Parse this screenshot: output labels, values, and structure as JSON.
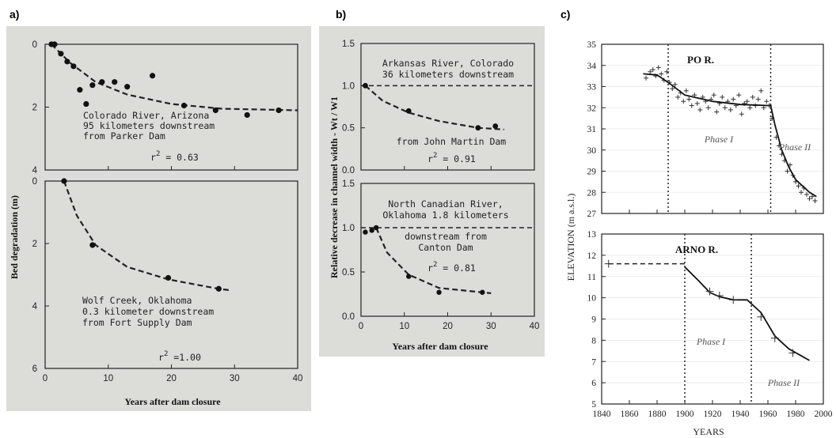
{
  "panels": {
    "a": {
      "label": "a)",
      "ylabel": "Bed degradation (m)",
      "xlabel": "Years after dam closure",
      "xticks": [
        "0",
        "10",
        "20",
        "30",
        "40"
      ]
    },
    "b": {
      "label": "b)",
      "ylabel": "Relative decrease in channel width - Wt / W1",
      "xlabel": "Years after dam closure",
      "xticks": [
        "0",
        "10",
        "20",
        "30",
        "40"
      ]
    },
    "c": {
      "label": "c)",
      "ylabel": "ELEVATION (m a.s.l.)",
      "xlabel": "YEARS",
      "xticks": [
        "1840",
        "1860",
        "1880",
        "1900",
        "1920",
        "1940",
        "1960",
        "1980",
        "2000"
      ]
    }
  },
  "chart_data": [
    {
      "type": "scatter",
      "id": "a-top",
      "annotation": [
        "Colorado River, Arizona",
        "95 kilometers downstream",
        "from Parker Dam"
      ],
      "r2_label": "r",
      "r2_sup": "2",
      "r2_value": "= 0.63",
      "ylim": [
        0,
        4
      ],
      "yticks": [
        "0",
        "2",
        "4"
      ],
      "xlim": [
        0,
        40
      ],
      "points": [
        [
          1,
          0
        ],
        [
          1.5,
          0
        ],
        [
          2.5,
          0.3
        ],
        [
          3.5,
          0.55
        ],
        [
          4.5,
          0.7
        ],
        [
          5.5,
          1.45
        ],
        [
          6.5,
          1.9
        ],
        [
          7.5,
          1.3
        ],
        [
          9,
          1.2
        ],
        [
          11,
          1.2
        ],
        [
          13,
          1.35
        ],
        [
          17,
          1.0
        ],
        [
          22,
          1.95
        ],
        [
          27,
          2.1
        ],
        [
          32,
          2.25
        ],
        [
          37,
          2.1
        ]
      ],
      "fit": [
        [
          1,
          0
        ],
        [
          4,
          0.6
        ],
        [
          8,
          1.2
        ],
        [
          13,
          1.6
        ],
        [
          20,
          1.9
        ],
        [
          28,
          2.05
        ],
        [
          40,
          2.1
        ]
      ]
    },
    {
      "type": "scatter",
      "id": "a-bottom",
      "annotation": [
        "Wolf Creek, Oklahoma",
        "0.3 kilometer  downstream",
        "from Fort Supply Dam"
      ],
      "r2_label": "r",
      "r2_sup": "2",
      "r2_value": "=1.00",
      "ylim": [
        0,
        6
      ],
      "yticks": [
        "0",
        "2",
        "4",
        "6"
      ],
      "xlim": [
        0,
        40
      ],
      "points": [
        [
          3,
          0
        ],
        [
          7.5,
          2.05
        ],
        [
          19.5,
          3.1
        ],
        [
          27.5,
          3.45
        ]
      ],
      "fit": [
        [
          3,
          0
        ],
        [
          5,
          1.1
        ],
        [
          8,
          2.05
        ],
        [
          13,
          2.75
        ],
        [
          19.5,
          3.15
        ],
        [
          27.5,
          3.45
        ],
        [
          29.5,
          3.5
        ]
      ]
    },
    {
      "type": "scatter",
      "id": "b-top",
      "annotation_top": [
        "Arkansas River, Colorado",
        "36 kilometers downstream"
      ],
      "annotation_bottom": [
        "from John Martin Dam"
      ],
      "r2_label": "r",
      "r2_sup": "2",
      "r2_value": "= 0.91",
      "ylim": [
        0,
        1.5
      ],
      "yticks": [
        "0.0",
        "0.5",
        "1.0",
        "1.5"
      ],
      "xlim": [
        0,
        40
      ],
      "reference_line": 1.0,
      "points": [
        [
          1,
          1.0
        ],
        [
          11,
          0.7
        ],
        [
          27,
          0.5
        ],
        [
          31,
          0.52
        ]
      ],
      "fit": [
        [
          1,
          1.0
        ],
        [
          5,
          0.82
        ],
        [
          11,
          0.68
        ],
        [
          18,
          0.58
        ],
        [
          27,
          0.5
        ],
        [
          33,
          0.48
        ]
      ]
    },
    {
      "type": "scatter",
      "id": "b-bottom",
      "annotation_top": [
        "North Canadian River,",
        "Oklahoma 1.8 kilometers"
      ],
      "annotation_bottom": [
        "downstream from",
        "Canton Dam"
      ],
      "r2_label": "r",
      "r2_sup": "2",
      "r2_value": "= 0.81",
      "ylim": [
        0,
        1.5
      ],
      "yticks": [
        "0.0",
        "0.5",
        "1.0",
        "1.5"
      ],
      "xlim": [
        0,
        40
      ],
      "xticks": [
        "0",
        "10",
        "20",
        "30",
        "40"
      ],
      "reference_line": 1.0,
      "points": [
        [
          1,
          0.95
        ],
        [
          2.5,
          0.97
        ],
        [
          3.5,
          1.0
        ],
        [
          11,
          0.45
        ],
        [
          18,
          0.27
        ],
        [
          28,
          0.27
        ]
      ],
      "fit": [
        [
          3.5,
          1.0
        ],
        [
          6,
          0.72
        ],
        [
          11,
          0.47
        ],
        [
          18,
          0.32
        ],
        [
          28,
          0.27
        ],
        [
          30,
          0.26
        ]
      ]
    },
    {
      "type": "line",
      "id": "c-top",
      "river": "PO R.",
      "phases": [
        "Phase I",
        "Phase II"
      ],
      "phase_boundaries": [
        1888,
        1962
      ],
      "ylim": [
        27,
        35
      ],
      "yticks": [
        "27",
        "28",
        "29",
        "30",
        "31",
        "32",
        "33",
        "34",
        "35"
      ],
      "xlim": [
        1840,
        2000
      ],
      "line": [
        [
          1870,
          33.6
        ],
        [
          1880,
          33.55
        ],
        [
          1890,
          33.1
        ],
        [
          1900,
          32.6
        ],
        [
          1920,
          32.3
        ],
        [
          1940,
          32.15
        ],
        [
          1962,
          32.1
        ],
        [
          1965,
          31.2
        ],
        [
          1970,
          30.0
        ],
        [
          1975,
          29.2
        ],
        [
          1980,
          28.6
        ],
        [
          1990,
          28.0
        ],
        [
          1995,
          27.8
        ]
      ],
      "scatter": [
        [
          1872,
          33.4
        ],
        [
          1875,
          33.7
        ],
        [
          1877,
          33.8
        ],
        [
          1879,
          33.5
        ],
        [
          1881,
          33.9
        ],
        [
          1883,
          33.6
        ],
        [
          1885,
          33.3
        ],
        [
          1887,
          33.7
        ],
        [
          1889,
          33.2
        ],
        [
          1891,
          32.9
        ],
        [
          1893,
          33.1
        ],
        [
          1895,
          32.5
        ],
        [
          1897,
          32.7
        ],
        [
          1899,
          32.3
        ],
        [
          1901,
          32.8
        ],
        [
          1903,
          32.4
        ],
        [
          1905,
          32.1
        ],
        [
          1907,
          32.6
        ],
        [
          1909,
          32.2
        ],
        [
          1911,
          31.9
        ],
        [
          1913,
          32.5
        ],
        [
          1915,
          32.3
        ],
        [
          1917,
          32.0
        ],
        [
          1919,
          32.4
        ],
        [
          1921,
          32.6
        ],
        [
          1923,
          31.8
        ],
        [
          1925,
          32.2
        ],
        [
          1927,
          32.5
        ],
        [
          1929,
          32.0
        ],
        [
          1931,
          32.3
        ],
        [
          1933,
          31.9
        ],
        [
          1935,
          32.4
        ],
        [
          1937,
          32.1
        ],
        [
          1939,
          32.6
        ],
        [
          1941,
          31.7
        ],
        [
          1943,
          32.2
        ],
        [
          1945,
          32.3
        ],
        [
          1947,
          32.0
        ],
        [
          1949,
          32.5
        ],
        [
          1951,
          32.1
        ],
        [
          1953,
          32.4
        ],
        [
          1955,
          32.8
        ],
        [
          1957,
          32.0
        ],
        [
          1959,
          32.3
        ],
        [
          1961,
          32.1
        ],
        [
          1963,
          31.5
        ],
        [
          1966,
          30.6
        ],
        [
          1968,
          30.2
        ],
        [
          1970,
          29.8
        ],
        [
          1972,
          29.5
        ],
        [
          1974,
          29.0
        ],
        [
          1976,
          29.3
        ],
        [
          1978,
          28.8
        ],
        [
          1980,
          28.5
        ],
        [
          1982,
          28.3
        ],
        [
          1984,
          28.0
        ],
        [
          1986,
          28.2
        ],
        [
          1988,
          27.9
        ],
        [
          1990,
          27.7
        ],
        [
          1992,
          27.8
        ],
        [
          1994,
          27.6
        ]
      ]
    },
    {
      "type": "line",
      "id": "c-bottom",
      "river": "ARNO R.",
      "phases": [
        "Phase I",
        "Phase II"
      ],
      "phase_boundaries": [
        1900,
        1948
      ],
      "ylim": [
        5,
        13
      ],
      "yticks": [
        "5",
        "6",
        "7",
        "8",
        "9",
        "10",
        "11",
        "12",
        "13"
      ],
      "xlim": [
        1840,
        2000
      ],
      "xticks": [
        "1840",
        "1860",
        "1880",
        "1900",
        "1920",
        "1940",
        "1960",
        "1980",
        "2000"
      ],
      "dashed_level": [
        [
          1845,
          11.6
        ],
        [
          1900,
          11.6
        ]
      ],
      "line": [
        [
          1900,
          11.45
        ],
        [
          1910,
          10.8
        ],
        [
          1918,
          10.25
        ],
        [
          1925,
          10.05
        ],
        [
          1935,
          9.9
        ],
        [
          1945,
          9.9
        ],
        [
          1955,
          9.3
        ],
        [
          1965,
          8.2
        ],
        [
          1975,
          7.6
        ],
        [
          1990,
          7.05
        ]
      ],
      "markers": [
        [
          1845,
          11.6
        ],
        [
          1918,
          10.3
        ],
        [
          1925,
          10.1
        ],
        [
          1935,
          9.9
        ],
        [
          1955,
          9.1
        ],
        [
          1965,
          8.1
        ],
        [
          1978,
          7.4
        ]
      ]
    }
  ]
}
